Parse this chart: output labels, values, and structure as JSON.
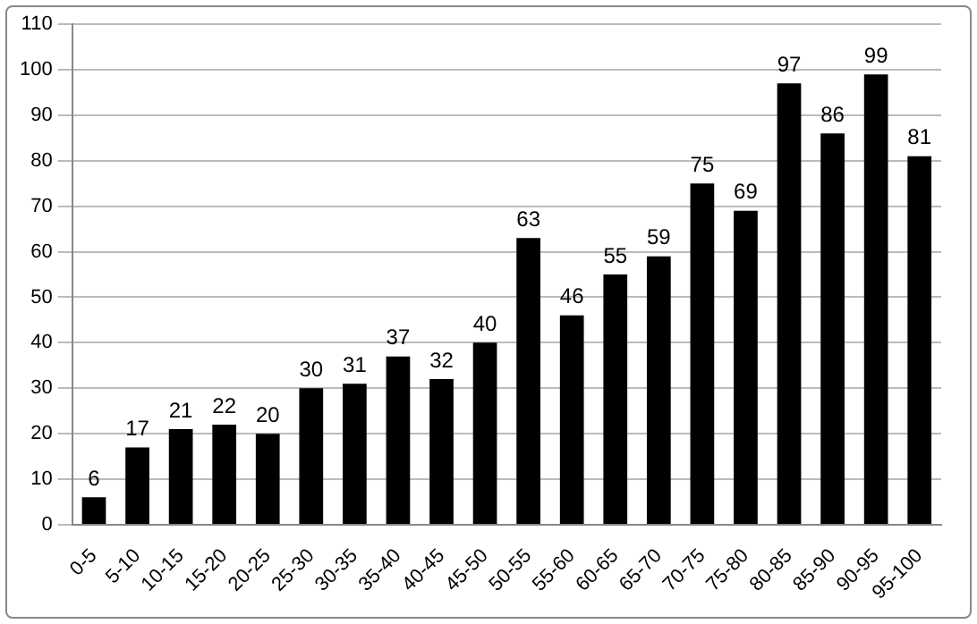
{
  "chart_data": {
    "type": "bar",
    "categories": [
      "0-5",
      "5-10",
      "10-15",
      "15-20",
      "20-25",
      "25-30",
      "30-35",
      "35-40",
      "40-45",
      "45-50",
      "50-55",
      "55-60",
      "60-65",
      "65-70",
      "70-75",
      "75-80",
      "80-85",
      "85-90",
      "90-95",
      "95-100"
    ],
    "values": [
      6,
      17,
      21,
      22,
      20,
      30,
      31,
      37,
      32,
      40,
      63,
      46,
      55,
      59,
      75,
      69,
      97,
      86,
      99,
      81
    ],
    "color": "#000000",
    "ylim": [
      0,
      110
    ],
    "yticks": [
      0,
      10,
      20,
      30,
      40,
      50,
      60,
      70,
      80,
      90,
      100,
      110
    ],
    "grid": "y",
    "data_labels": true,
    "legend": false
  }
}
